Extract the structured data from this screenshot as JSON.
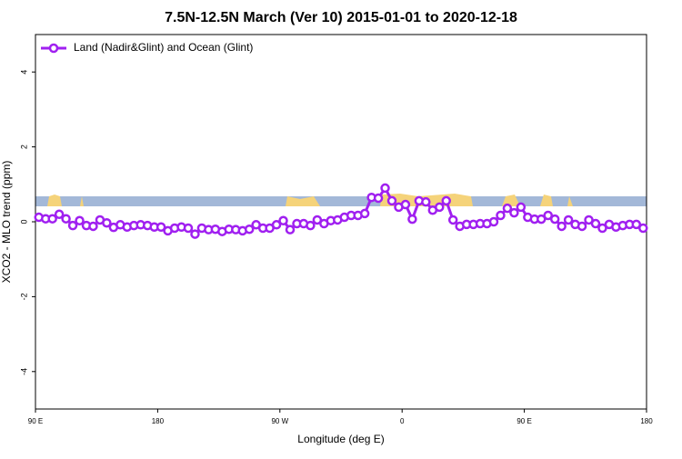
{
  "chart_data": {
    "type": "line",
    "title": "7.5N-12.5N March (Ver 10)   2015-01-01 to 2020-12-18",
    "xlabel": "Longitude (deg E)",
    "ylabel": "XCO2 - MLO trend (ppm)",
    "x": [
      92.5,
      97.5,
      102.5,
      107.5,
      112.5,
      117.5,
      122.5,
      127.5,
      132.5,
      137.5,
      142.5,
      147.5,
      152.5,
      157.5,
      162.5,
      167.5,
      172.5,
      177.5,
      182.5,
      187.5,
      192.5,
      197.5,
      202.5,
      207.5,
      212.5,
      217.5,
      222.5,
      227.5,
      232.5,
      237.5,
      242.5,
      247.5,
      252.5,
      257.5,
      262.5,
      267.5,
      272.5,
      277.5,
      282.5,
      287.5,
      292.5,
      297.5,
      302.5,
      307.5,
      312.5,
      317.5,
      322.5,
      327.5,
      332.5,
      337.5,
      342.5,
      347.5,
      352.5,
      357.5,
      362.5,
      367.5,
      372.5,
      377.5,
      382.5,
      387.5,
      392.5,
      397.5,
      402.5,
      407.5,
      412.5,
      417.5,
      422.5,
      427.5,
      432.5,
      437.5,
      442.5,
      447.5,
      452.5,
      457.5,
      462.5,
      467.5,
      472.5,
      477.5,
      482.5,
      487.5,
      492.5,
      497.5,
      502.5,
      507.5,
      512.5,
      517.5,
      522.5,
      527.5,
      532.5,
      537.5
    ],
    "series": [
      {
        "name": "Land (Nadir&Glint) and Ocean (Glint)",
        "color": "#a020f0",
        "values": [
          0.12,
          0.08,
          0.08,
          0.2,
          0.08,
          -0.1,
          0.03,
          -0.1,
          -0.12,
          0.05,
          -0.03,
          -0.15,
          -0.08,
          -0.14,
          -0.1,
          -0.08,
          -0.1,
          -0.14,
          -0.14,
          -0.24,
          -0.17,
          -0.14,
          -0.17,
          -0.33,
          -0.17,
          -0.21,
          -0.2,
          -0.26,
          -0.2,
          -0.21,
          -0.24,
          -0.2,
          -0.08,
          -0.17,
          -0.17,
          -0.08,
          0.03,
          -0.21,
          -0.05,
          -0.05,
          -0.1,
          0.05,
          -0.05,
          0.03,
          0.05,
          0.12,
          0.17,
          0.17,
          0.22,
          0.65,
          0.63,
          0.9,
          0.56,
          0.39,
          0.46,
          0.07,
          0.56,
          0.53,
          0.31,
          0.39,
          0.56,
          0.05,
          -0.12,
          -0.07,
          -0.07,
          -0.05,
          -0.05,
          0,
          0.17,
          0.36,
          0.24,
          0.39,
          0.12,
          0.07,
          0.07,
          0.17,
          0.07,
          -0.12,
          0.05,
          -0.07,
          -0.12,
          0.05,
          -0.05,
          -0.17,
          -0.07,
          -0.14,
          -0.1,
          -0.07,
          -0.07,
          -0.17
        ]
      }
    ],
    "xlim": [
      90,
      540
    ],
    "xticks": [
      {
        "value": 90,
        "label": "90 E"
      },
      180,
      {
        "value": 270,
        "label": "90 W"
      },
      {
        "value": 360,
        "label": "0"
      },
      {
        "value": 450,
        "label": "90 E"
      },
      {
        "value": 540,
        "label": "180"
      }
    ],
    "ylim": [
      -5,
      5
    ],
    "yticks": [
      -4,
      -2,
      0,
      2,
      4
    ],
    "legend": "upper left",
    "grid": false
  }
}
